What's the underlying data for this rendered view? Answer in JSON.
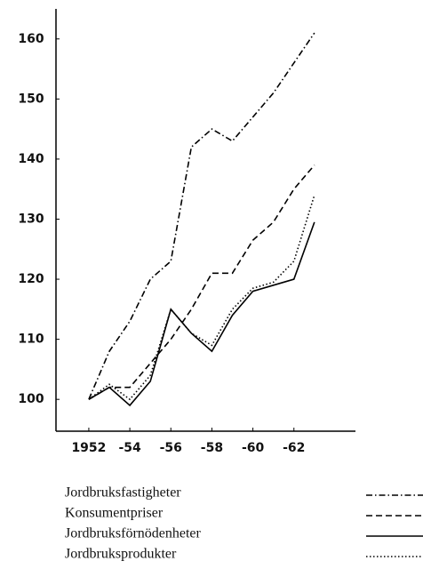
{
  "chart_data": {
    "type": "line",
    "xlim": [
      1950.4,
      1965
    ],
    "xticks": [
      1952,
      {
        "value": 1954,
        "label": "-54"
      },
      {
        "value": 1956,
        "label": "-56"
      },
      {
        "value": 1958,
        "label": "-58"
      },
      {
        "value": 1960,
        "label": "-60"
      },
      {
        "value": 1962,
        "label": "-62"
      }
    ],
    "ylim": [
      94.7,
      165
    ],
    "yticks": [
      100,
      110,
      120,
      130,
      140,
      150,
      160
    ],
    "x": [
      1952,
      1953,
      1954,
      1955,
      1956,
      1957,
      1958,
      1959,
      1960,
      1961,
      1962,
      1963
    ],
    "series": [
      {
        "name": "Jordbruksfastigheter",
        "color": "#000000",
        "style": "dashdot",
        "values": [
          100,
          108,
          113,
          120,
          123,
          142,
          145,
          143,
          147,
          151,
          156,
          161
        ]
      },
      {
        "name": "Konsumentpriser",
        "color": "#000000",
        "style": "dashed",
        "values": [
          100,
          102,
          102,
          106,
          110,
          115,
          121,
          121,
          126.5,
          129.5,
          135,
          139
        ]
      },
      {
        "name": "Jordbruksförnödenheter",
        "color": "#000000",
        "style": "solid",
        "values": [
          100,
          102,
          99,
          103,
          115,
          111,
          108,
          114,
          118,
          119,
          120,
          129.5
        ]
      },
      {
        "name": "Jordbruksprodukter",
        "color": "#000000",
        "style": "dotted",
        "values": [
          100,
          102.5,
          100,
          104,
          115,
          111,
          109,
          115,
          118.5,
          119.5,
          123,
          134
        ]
      }
    ]
  }
}
